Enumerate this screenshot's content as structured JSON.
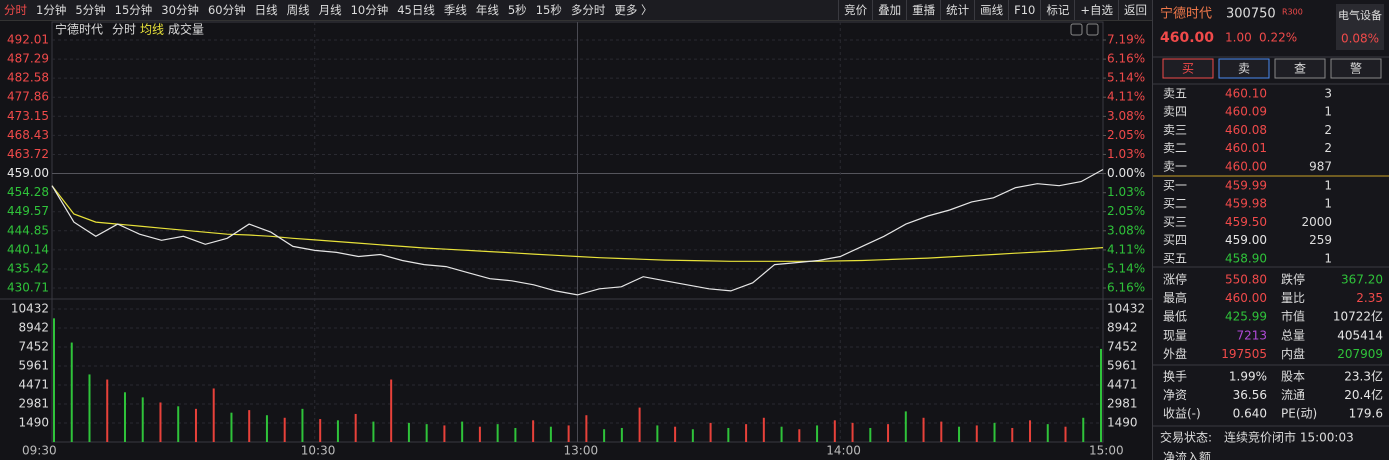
{
  "toolbar": {
    "tabs": [
      "分时",
      "1分钟",
      "5分钟",
      "15分钟",
      "30分钟",
      "60分钟",
      "日线",
      "周线",
      "月线",
      "10分钟",
      "45日线",
      "季线",
      "年线",
      "5秒",
      "15秒",
      "多分时",
      "更多 〉"
    ],
    "buttons": [
      "竞价",
      "叠加",
      "重播",
      "统计",
      "画线",
      "F10",
      "标记",
      "+自选",
      "返回"
    ]
  },
  "chart": {
    "stock": "宁德时代",
    "labels": [
      "分时",
      "均线",
      "成交量"
    ],
    "price_lim": [
      430.71,
      492.01
    ],
    "price_ticks": [
      492.01,
      487.29,
      482.58,
      477.86,
      473.15,
      468.43,
      463.72,
      {
        "value": 459,
        "label": "459.00"
      },
      454.28,
      449.57,
      444.85,
      440.14,
      435.42,
      430.71
    ],
    "pct_ticks": [
      {
        "value": 7.19,
        "label": "7.19%"
      },
      {
        "value": 6.16,
        "label": "6.16%"
      },
      {
        "value": 5.14,
        "label": "5.14%"
      },
      {
        "value": 4.11,
        "label": "4.11%"
      },
      {
        "value": 3.08,
        "label": "3.08%"
      },
      {
        "value": 2.05,
        "label": "2.05%"
      },
      {
        "value": 1.03,
        "label": "1.03%"
      },
      {
        "value": 0,
        "label": "0.00%"
      },
      {
        "value": -1.03,
        "label": "1.03%"
      },
      {
        "value": -2.05,
        "label": "2.05%"
      },
      {
        "value": -3.08,
        "label": "3.08%"
      },
      {
        "value": -4.11,
        "label": "4.11%"
      },
      {
        "value": -5.14,
        "label": "5.14%"
      },
      {
        "value": -6.16,
        "label": "6.16%"
      }
    ],
    "volume_ticks": [
      10432,
      8942,
      7452,
      5961,
      4471,
      2981,
      1490
    ],
    "time_ticks": [
      {
        "value": 0,
        "label": "09:30"
      },
      {
        "value": 60,
        "label": "10:30"
      },
      {
        "value": 120,
        "label": "13:00"
      },
      {
        "value": 180,
        "label": "14:00"
      },
      {
        "value": 240,
        "label": "15:00"
      }
    ],
    "price_color": "#e6e6e6",
    "avg_color": "#e8e23a",
    "price": [
      456.0,
      447.0,
      443.5,
      446.5,
      444.0,
      442.5,
      443.5,
      441.5,
      443.0,
      446.5,
      444.5,
      441.0,
      440.0,
      439.5,
      438.5,
      439.0,
      437.5,
      436.5,
      436.0,
      434.5,
      433.0,
      432.5,
      431.5,
      430.0,
      429.0,
      430.5,
      431.0,
      433.5,
      432.5,
      431.5,
      430.5,
      430.0,
      432.0,
      436.5,
      437.0,
      437.5,
      438.5,
      441.0,
      443.5,
      446.5,
      448.5,
      450.0,
      452.0,
      453.0,
      455.5,
      456.5,
      456.0,
      457.0,
      460.0
    ],
    "avg": [
      456,
      449,
      447,
      446.5,
      446,
      445.5,
      445,
      444.5,
      444,
      443.8,
      443.5,
      443,
      442.6,
      442.2,
      441.8,
      441.4,
      441,
      440.6,
      440.3,
      440,
      439.7,
      439.4,
      439.1,
      438.8,
      438.5,
      438.2,
      438,
      437.8,
      437.6,
      437.5,
      437.4,
      437.3,
      437.3,
      437.3,
      437.3,
      437.3,
      437.4,
      437.5,
      437.7,
      437.9,
      438.1,
      438.4,
      438.7,
      439,
      439.3,
      439.6,
      439.9,
      440.3,
      440.7
    ],
    "volume": [
      9700,
      7800,
      5300,
      4900,
      3900,
      3500,
      3100,
      2800,
      2600,
      4200,
      2300,
      2500,
      2100,
      1900,
      2600,
      1800,
      1700,
      2200,
      1600,
      4900,
      1500,
      1400,
      1300,
      1600,
      1200,
      1400,
      1100,
      1700,
      1200,
      1300,
      2100,
      1000,
      1100,
      2700,
      1300,
      1200,
      1000,
      1500,
      1100,
      1400,
      1900,
      1200,
      1000,
      1300,
      1700,
      1500,
      1100,
      1400,
      2400,
      1900,
      1600,
      1200,
      1300,
      1500,
      1100,
      1700,
      1400,
      1200,
      1900,
      7300
    ],
    "volume_colors": [
      "#2fc33a",
      "#2fc33a",
      "#2fc33a",
      "#e8413a",
      "#2fc33a",
      "#2fc33a",
      "#e8413a",
      "#2fc33a",
      "#e8413a",
      "#e8413a",
      "#2fc33a",
      "#e8413a",
      "#2fc33a",
      "#e8413a",
      "#2fc33a",
      "#e8413a",
      "#2fc33a",
      "#e8413a",
      "#2fc33a",
      "#e8413a",
      "#2fc33a",
      "#2fc33a",
      "#e8413a",
      "#2fc33a",
      "#e8413a",
      "#2fc33a",
      "#2fc33a",
      "#e8413a",
      "#2fc33a",
      "#e8413a",
      "#e8413a",
      "#2fc33a",
      "#2fc33a",
      "#e8413a",
      "#2fc33a",
      "#e8413a",
      "#2fc33a",
      "#e8413a",
      "#2fc33a",
      "#e8413a",
      "#e8413a",
      "#2fc33a",
      "#e8413a",
      "#2fc33a",
      "#e8413a",
      "#e8413a",
      "#2fc33a",
      "#e8413a",
      "#2fc33a",
      "#e8413a",
      "#e8413a",
      "#2fc33a",
      "#e8413a",
      "#2fc33a",
      "#e8413a",
      "#e8413a",
      "#2fc33a",
      "#e8413a",
      "#2fc33a",
      "#2fc33a"
    ]
  },
  "quote": {
    "name": "宁德时代",
    "code": "300750",
    "index_tag": "R300",
    "sector": "电气设备",
    "price": "460.00",
    "change": "1.00",
    "change_pct": "0.22%",
    "sector_pct": "0.08%",
    "buttons": [
      "买",
      "卖",
      "查",
      "警"
    ]
  },
  "order_book": [
    {
      "label": "卖五",
      "price": "460.10",
      "qty": "3",
      "color": "#f04a4a"
    },
    {
      "label": "卖四",
      "price": "460.09",
      "qty": "1",
      "color": "#f04a4a"
    },
    {
      "label": "卖三",
      "price": "460.08",
      "qty": "2",
      "color": "#f04a4a"
    },
    {
      "label": "卖二",
      "price": "460.01",
      "qty": "2",
      "color": "#f04a4a"
    },
    {
      "label": "卖一",
      "price": "460.00",
      "qty": "987",
      "color": "#f04a4a"
    },
    {
      "label": "买一",
      "price": "459.99",
      "qty": "1",
      "color": "#f04a4a"
    },
    {
      "label": "买二",
      "price": "459.98",
      "qty": "1",
      "color": "#f04a4a"
    },
    {
      "label": "买三",
      "price": "459.50",
      "qty": "2000",
      "color": "#f04a4a"
    },
    {
      "label": "买四",
      "price": "459.00",
      "qty": "259",
      "color": "#e6e6e6"
    },
    {
      "label": "买五",
      "price": "458.90",
      "qty": "1",
      "color": "#2fc33a"
    }
  ],
  "stats": [
    {
      "l1": "涨停",
      "v1": "550.80",
      "c1": "#f04a4a",
      "l2": "跌停",
      "v2": "367.20",
      "c2": "#2fc33a"
    },
    {
      "l1": "最高",
      "v1": "460.00",
      "c1": "#f04a4a",
      "l2": "量比",
      "v2": "2.35",
      "c2": "#f04a4a"
    },
    {
      "l1": "最低",
      "v1": "425.99",
      "c1": "#2fc33a",
      "l2": "市值",
      "v2": "10722亿",
      "c2": "#e6e6e6"
    },
    {
      "l1": "现量",
      "v1": "7213",
      "c1": "#b04ad8",
      "l2": "总量",
      "v2": "405414",
      "c2": "#e6e6e6"
    },
    {
      "l1": "外盘",
      "v1": "197505",
      "c1": "#f04a4a",
      "l2": "内盘",
      "v2": "207909",
      "c2": "#2fc33a"
    },
    {
      "l1": "换手",
      "v1": "1.99%",
      "c1": "#e6e6e6",
      "l2": "股本",
      "v2": "23.3亿",
      "c2": "#e6e6e6"
    },
    {
      "l1": "净资",
      "v1": "36.56",
      "c1": "#e6e6e6",
      "l2": "流通",
      "v2": "20.4亿",
      "c2": "#e6e6e6"
    },
    {
      "l1": "收益(-)",
      "v1": "0.640",
      "c1": "#e6e6e6",
      "l2": "PE(动)",
      "v2": "179.6",
      "c2": "#e6e6e6"
    }
  ],
  "status": {
    "label": "交易状态:",
    "value": "连续竞价闭市 15:00:03",
    "inflow": "净流入额"
  }
}
